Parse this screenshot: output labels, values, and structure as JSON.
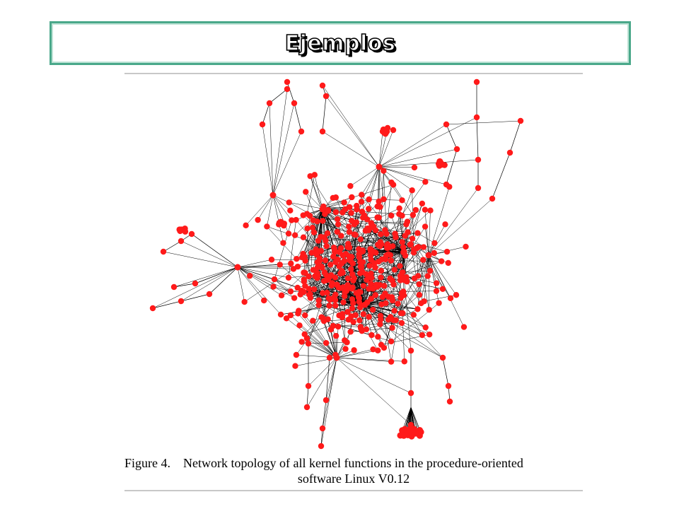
{
  "slide": {
    "title": "Ejemplos",
    "title_border_color": "#4aa88a"
  },
  "figure": {
    "node_color": "#ff1a1a",
    "edge_color": "#000000",
    "caption_line1": "Figure 4.    Network topology of all kernel functions in the procedure-oriented",
    "caption_line2": "software Linux V0.12"
  }
}
